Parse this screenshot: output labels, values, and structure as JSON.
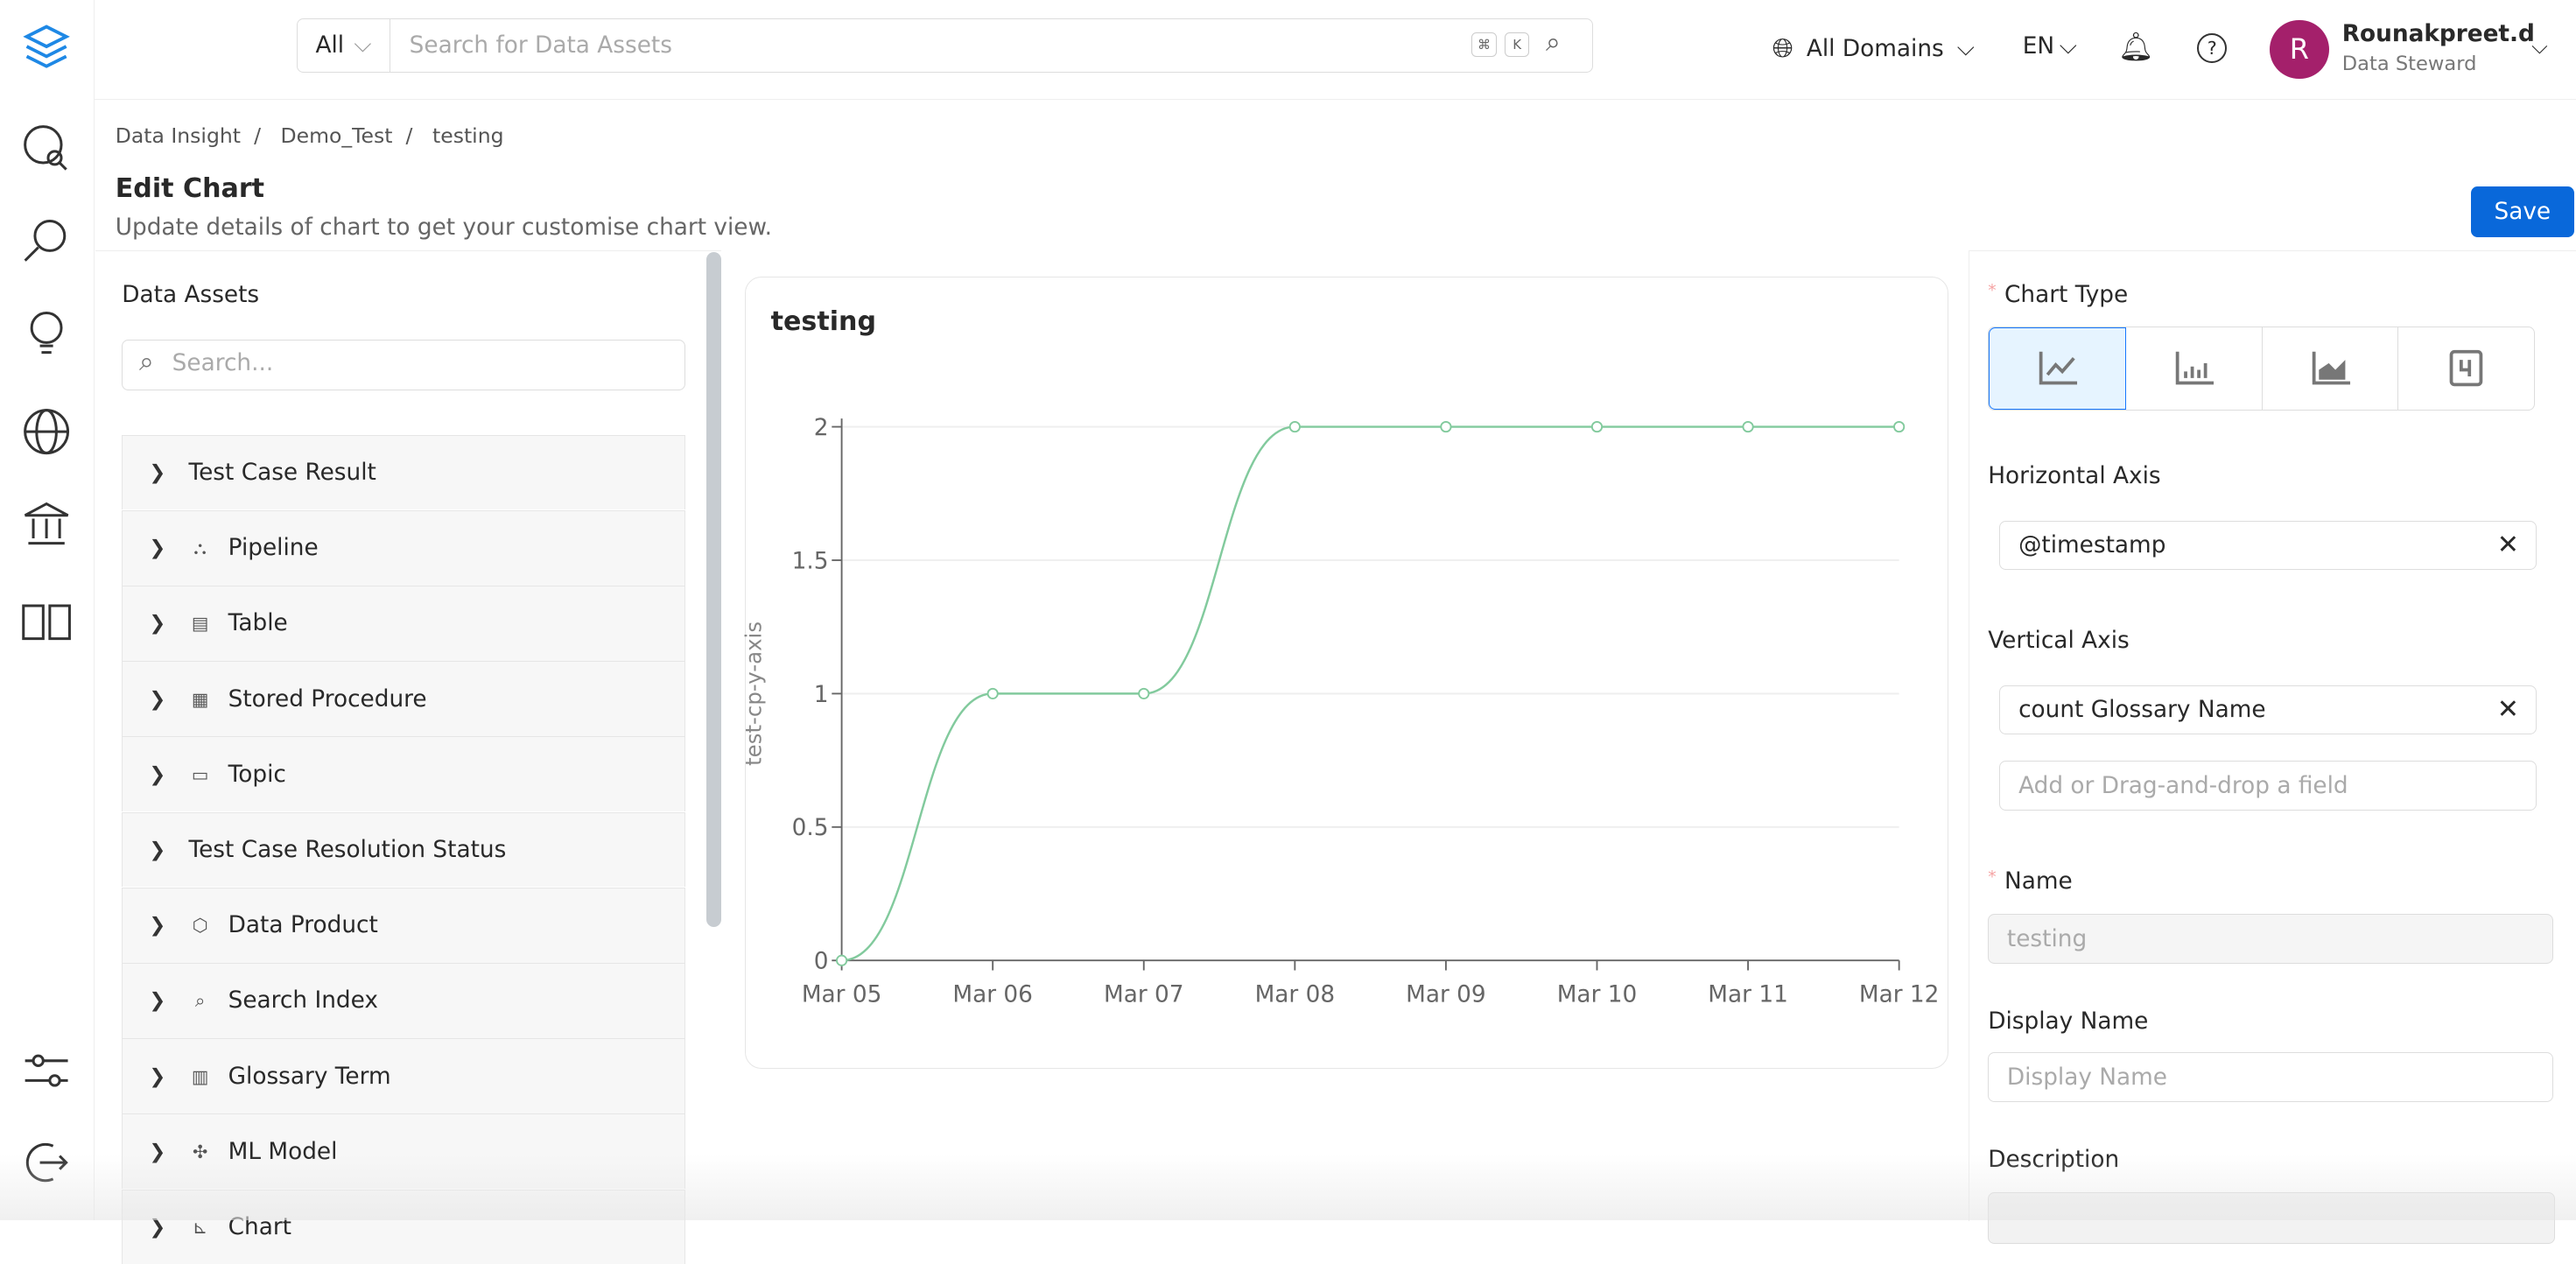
{
  "header": {
    "search_scope": "All",
    "search_placeholder": "Search for Data Assets",
    "kbd_cmd": "⌘",
    "kbd_k": "K",
    "domain": "All Domains",
    "language": "EN",
    "user_initial": "R",
    "user_name": "Rounakpreet.d",
    "user_role": "Data Steward"
  },
  "breadcrumb": [
    "Data Insight",
    "Demo_Test",
    "testing"
  ],
  "breadcrumb_sep": "/",
  "page": {
    "title": "Edit Chart",
    "subtitle": "Update details of chart to get your customise chart view.",
    "save_label": "Save"
  },
  "left": {
    "label": "Data Assets",
    "search_placeholder": "Search...",
    "assets": [
      "Test Case Result",
      "Pipeline",
      "Table",
      "Stored Procedure",
      "Topic",
      "Test Case Resolution Status",
      "Data Product",
      "Search Index",
      "Glossary Term",
      "ML Model",
      "Chart"
    ]
  },
  "chart_title": "testing",
  "chart_data": {
    "type": "line",
    "title": "testing",
    "xlabel": "",
    "ylabel": "test-cp-y-axis",
    "categories": [
      "Mar 05",
      "Mar 06",
      "Mar 07",
      "Mar 08",
      "Mar 09",
      "Mar 10",
      "Mar 11",
      "Mar 12"
    ],
    "series": [
      {
        "name": "count Glossary Name",
        "values": [
          0,
          1,
          1,
          2,
          2,
          2,
          2,
          2
        ]
      }
    ],
    "yticks": [
      "0",
      "0.5",
      "1",
      "1.5",
      "2"
    ],
    "ylim": [
      0,
      2
    ],
    "grid": true,
    "color": "#82ca9d"
  },
  "right": {
    "chart_type_label": "Chart Type",
    "chart_types": [
      "line",
      "bar",
      "area",
      "summary"
    ],
    "h_axis_label": "Horizontal Axis",
    "h_axis_value": "@timestamp",
    "v_axis_label": "Vertical Axis",
    "v_axis_value": "count Glossary Name",
    "v_axis_add_placeholder": "Add or Drag-and-drop a field",
    "name_label": "Name",
    "name_value": "testing",
    "display_name_label": "Display Name",
    "display_name_placeholder": "Display Name",
    "description_label": "Description",
    "required_mark": "*"
  },
  "colors": {
    "primary": "#0968da",
    "avatar": "#a4206b"
  }
}
